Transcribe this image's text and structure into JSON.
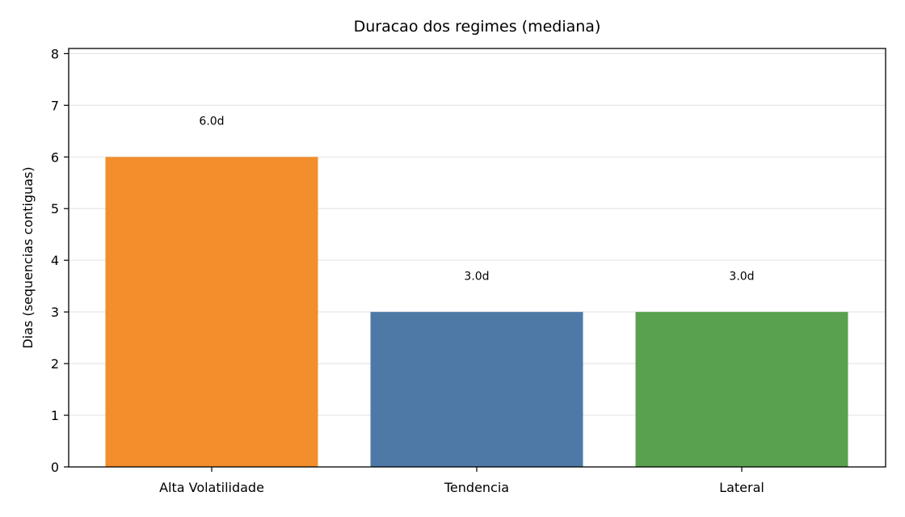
{
  "chart_data": {
    "type": "bar",
    "title": "Duracao dos regimes (mediana)",
    "xlabel": "",
    "ylabel": "Dias (sequencias contiguas)",
    "categories": [
      "Alta Volatilidade",
      "Tendencia",
      "Lateral"
    ],
    "values": [
      6.0,
      3.0,
      3.0
    ],
    "data_labels": [
      "6.0d",
      "3.0d",
      "3.0d"
    ],
    "colors": [
      "#f28e2b",
      "#4e79a7",
      "#59a14f"
    ],
    "ylim": [
      0,
      8.1
    ],
    "yticks": [
      0,
      1,
      2,
      3,
      4,
      5,
      6,
      7,
      8
    ],
    "grid": {
      "y": true,
      "x": false,
      "color": "#e6e6e6"
    },
    "legend": null
  }
}
